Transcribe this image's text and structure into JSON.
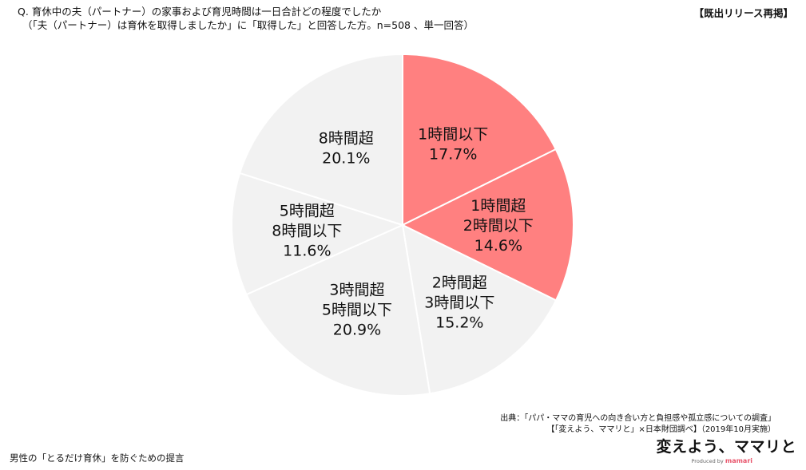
{
  "question": {
    "line1": "Q.  育休中の夫（パートナー）の家事および育児時間は一日合計どの程度でしたか",
    "line2": "（「夫（パートナー）は育休を取得しましたか」に「取得した」と回答した方。n=508 、単一回答）"
  },
  "badge": "【既出リリース再掲】",
  "source": {
    "line1": "出典：「パパ・ママの育児への向き合い方と負担感や孤立感についての調査」",
    "line2": "【「変えよう、ママリと」×日本財団調べ】（2019年10月実施）"
  },
  "footer_text": "男性の「とるだけ育休」を防ぐための提言",
  "logo": {
    "main": "変えよう、ママリと",
    "sub_prefix": "Produced by",
    "sub_brand": "mamari"
  },
  "colors": {
    "highlight": "#ff8080",
    "neutral": "#f2f2f2"
  },
  "chart_data": {
    "type": "pie",
    "start": "12 o'clock, clockwise",
    "slices": [
      {
        "label_lines": [
          "1時間以下"
        ],
        "value": 17.7,
        "value_label": "17.7%",
        "highlight": true
      },
      {
        "label_lines": [
          "1時間超",
          "2時間以下"
        ],
        "value": 14.6,
        "value_label": "14.6%",
        "highlight": true
      },
      {
        "label_lines": [
          "2時間超",
          "3時間以下"
        ],
        "value": 15.2,
        "value_label": "15.2%",
        "highlight": false
      },
      {
        "label_lines": [
          "3時間超",
          "5時間以下"
        ],
        "value": 20.9,
        "value_label": "20.9%",
        "highlight": false
      },
      {
        "label_lines": [
          "5時間超",
          "8時間以下"
        ],
        "value": 11.6,
        "value_label": "11.6%",
        "highlight": false
      },
      {
        "label_lines": [
          "8時間超"
        ],
        "value": 20.1,
        "value_label": "20.1%",
        "highlight": false
      }
    ]
  }
}
